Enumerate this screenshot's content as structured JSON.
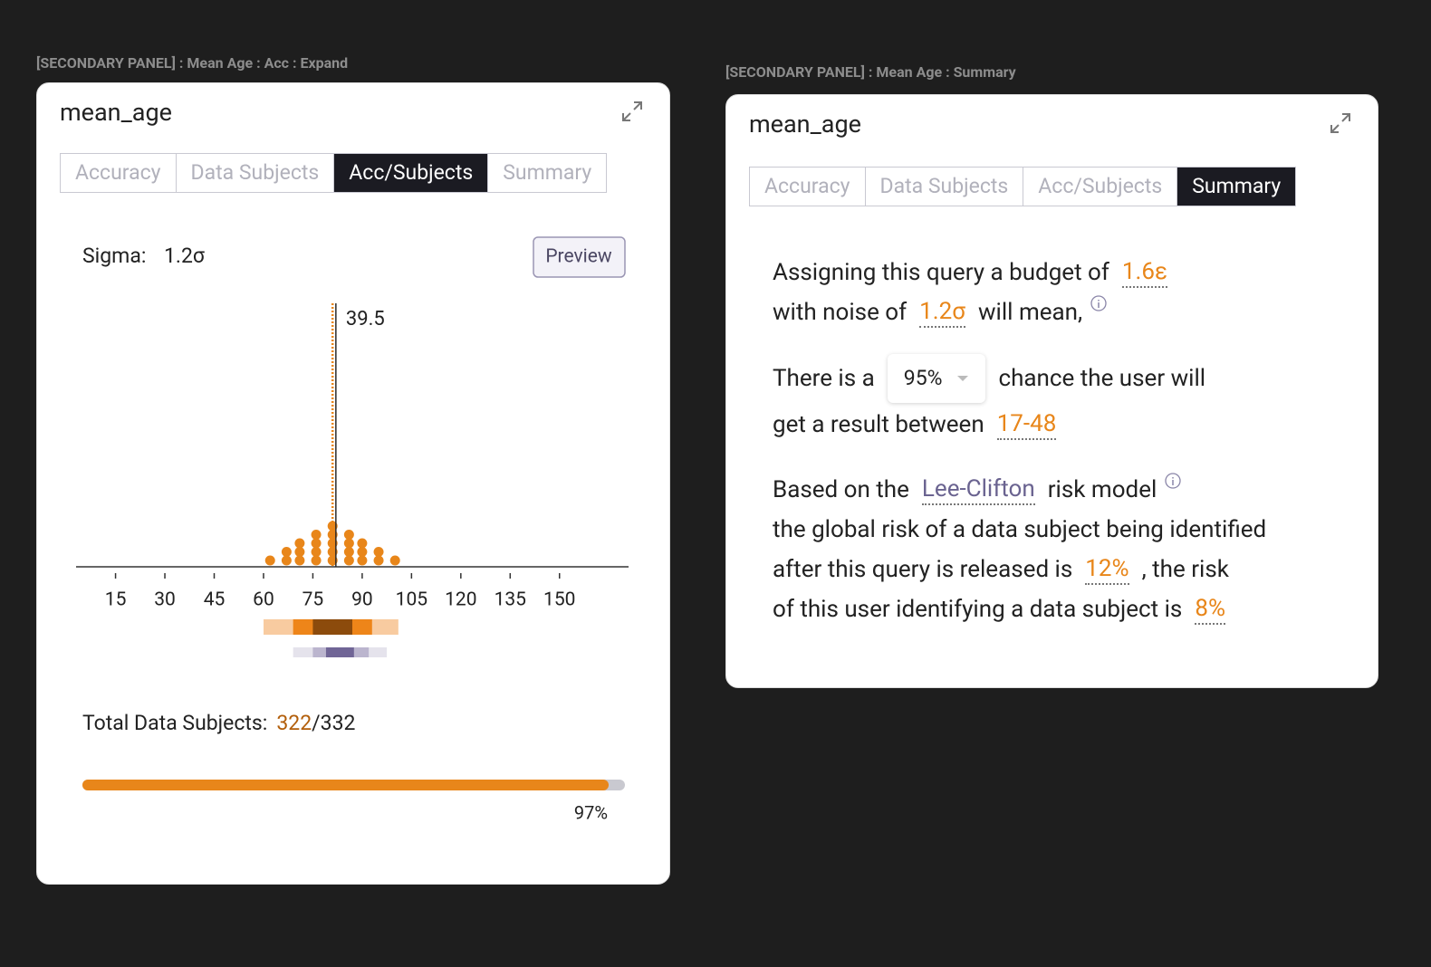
{
  "left_panel": {
    "label": "[SECONDARY PANEL] : Mean Age : Acc : Expand",
    "title": "mean_age",
    "tabs": [
      "Accuracy",
      "Data Subjects",
      "Acc/Subjects",
      "Summary"
    ],
    "active_tab": 2,
    "sigma_label": "Sigma:",
    "sigma_value": "1.2σ",
    "preview_button": "Preview",
    "chart_data": {
      "type": "dotplot",
      "xlim": [
        3,
        171
      ],
      "xticks": [
        15,
        30,
        45,
        60,
        75,
        90,
        105,
        120,
        135,
        150
      ],
      "color": "#e8861a",
      "dots": {
        "x": [
          62,
          67,
          71,
          76,
          81,
          86,
          90,
          95,
          100
        ],
        "counts": [
          1,
          2,
          3,
          4,
          5,
          4,
          3,
          2,
          1
        ]
      },
      "reference_lines": [
        {
          "x": 81,
          "style": "dotted",
          "color": "#e8861a"
        },
        {
          "x": 82,
          "style": "solid",
          "color": "#2a2a2a",
          "label": "39.5"
        }
      ],
      "intervals": [
        {
          "bands": [
            [
              60,
              101
            ],
            [
              69,
              93
            ],
            [
              75,
              87
            ]
          ],
          "colors": [
            "#f8cba0",
            "#ee8519",
            "#8c4b0c"
          ]
        },
        {
          "bands": [
            [
              69,
              97.5
            ],
            [
              75,
              92
            ],
            [
              79,
              87.5
            ]
          ],
          "colors": [
            "#e5e3ec",
            "#bbb5ce",
            "#706596"
          ]
        }
      ]
    },
    "subjects": {
      "label": "Total Data Subjects:",
      "selected": 322,
      "separator": "/",
      "total": 332
    },
    "progress": {
      "value": 97,
      "xlim": [
        0,
        100
      ],
      "label": "97%"
    }
  },
  "right_panel": {
    "label": "[SECONDARY PANEL] : Mean Age : Summary",
    "title": "mean_age",
    "tabs": [
      "Accuracy",
      "Data Subjects",
      "Acc/Subjects",
      "Summary"
    ],
    "active_tab": 3,
    "summary": {
      "paragraphs": [
        {
          "lines": [
            [
              {
                "kind": "plain",
                "text": "Assigning this query a budget of"
              },
              {
                "kind": "value",
                "text": "1.6ε"
              }
            ],
            [
              {
                "kind": "plain",
                "text": "with noise of"
              },
              {
                "kind": "value",
                "text": "1.2σ"
              },
              {
                "kind": "plain",
                "text": "will mean,"
              },
              {
                "kind": "info"
              }
            ]
          ]
        },
        {
          "lines": [
            [
              {
                "kind": "plain",
                "text": "There is a"
              },
              {
                "kind": "select",
                "text": "95%"
              },
              {
                "kind": "plain",
                "text": "chance the user will"
              }
            ],
            [
              {
                "kind": "plain",
                "text": "get a result between"
              },
              {
                "kind": "value",
                "text": "17-48"
              }
            ]
          ]
        },
        {
          "lines": [
            [
              {
                "kind": "plain",
                "text": "Based on the"
              },
              {
                "kind": "link",
                "text": "Lee-Clifton"
              },
              {
                "kind": "plain",
                "text": "risk model"
              },
              {
                "kind": "info"
              }
            ],
            [
              {
                "kind": "plain",
                "text": "the global risk of a data subject being identified"
              }
            ],
            [
              {
                "kind": "plain",
                "text": "after this query is released is"
              },
              {
                "kind": "value",
                "text": "12%"
              },
              {
                "kind": "plain",
                "text": ", the risk"
              }
            ],
            [
              {
                "kind": "plain",
                "text": "of this user identifying a data subject is"
              },
              {
                "kind": "value",
                "text": "8%"
              }
            ]
          ]
        }
      ]
    }
  }
}
